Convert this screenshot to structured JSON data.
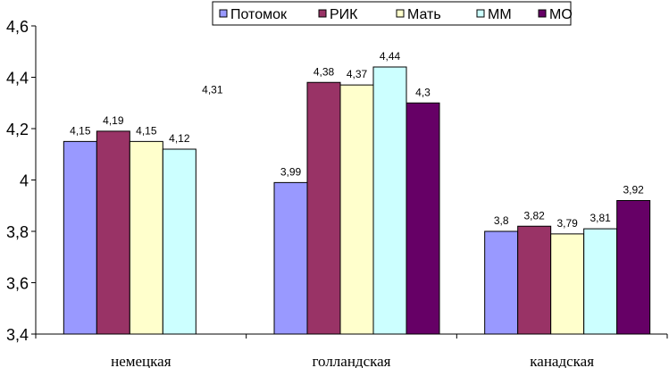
{
  "chart_data": {
    "type": "bar",
    "categories": [
      "немецкая",
      "голландская",
      "канадская"
    ],
    "series": [
      {
        "name": "Потомок",
        "color": "#9999ff",
        "values": [
          4.15,
          3.99,
          3.8
        ],
        "labels": [
          "4,15",
          "3,99",
          "3,8"
        ]
      },
      {
        "name": "РИК",
        "color": "#993366",
        "values": [
          4.19,
          4.38,
          3.82
        ],
        "labels": [
          "4,19",
          "4,38",
          "3,82"
        ]
      },
      {
        "name": "Мать",
        "color": "#ffffcc",
        "values": [
          4.15,
          4.37,
          3.79
        ],
        "labels": [
          "4,15",
          "4,37",
          "3,79"
        ]
      },
      {
        "name": "ММ",
        "color": "#ccffff",
        "values": [
          4.12,
          4.44,
          3.81
        ],
        "labels": [
          "4,12",
          "4,44",
          "3,81"
        ]
      },
      {
        "name": "МО",
        "color": "#660066",
        "values": [
          4.31,
          4.3,
          3.92
        ],
        "labels": [
          "4,31",
          "4,3",
          "3,92"
        ]
      }
    ],
    "ylim": [
      3.4,
      4.6
    ],
    "yticks": [
      3.4,
      3.6,
      3.8,
      4.0,
      4.2,
      4.4,
      4.6
    ],
    "ytick_labels": [
      "3,4",
      "3,6",
      "3,8",
      "4",
      "4,2",
      "4,4",
      "4,6"
    ],
    "grid": false,
    "legend_position": "top-right",
    "xlabel": "",
    "ylabel": "",
    "title": ""
  }
}
